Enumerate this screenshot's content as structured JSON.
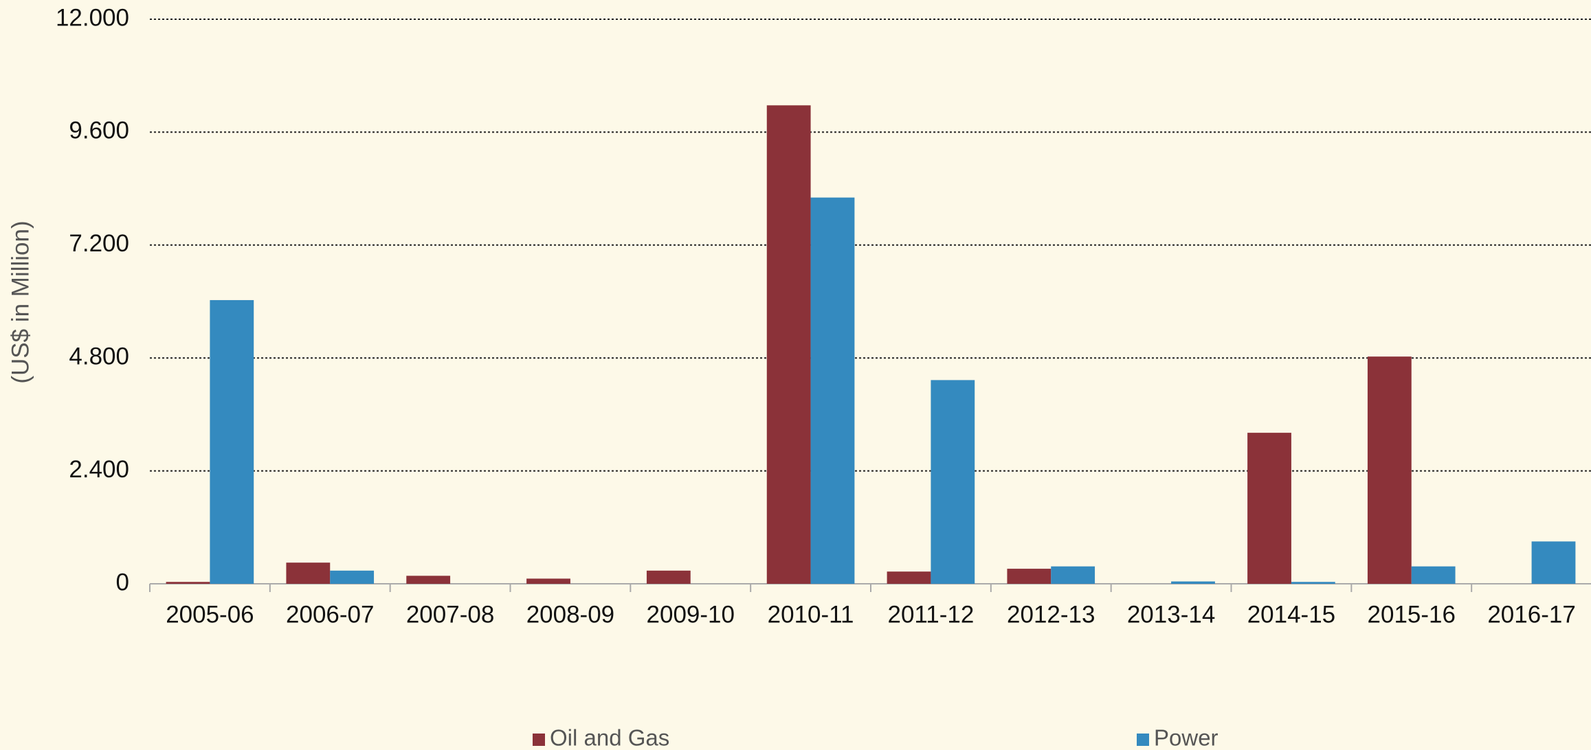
{
  "chart_data": {
    "type": "bar",
    "y_axis_label": "(US$ in Million)",
    "categories": [
      "2005-06",
      "2006-07",
      "2007-08",
      "2008-09",
      "2009-10",
      "2010-11",
      "2011-12",
      "2012-13",
      "2013-14",
      "2014-15",
      "2015-16",
      "2016-17"
    ],
    "series": [
      {
        "name": "Oil and Gas",
        "color": "#8b3239",
        "values": [
          40,
          450,
          170,
          110,
          280,
          10170,
          260,
          320,
          0,
          3210,
          4830,
          0
        ]
      },
      {
        "name": "Power",
        "color": "#348abf",
        "values": [
          6030,
          280,
          0,
          0,
          0,
          8210,
          4330,
          370,
          50,
          40,
          370,
          900
        ]
      }
    ],
    "ylim": [
      0,
      12000
    ],
    "yticks": [
      0,
      {
        "value": 2400,
        "label": "2.400"
      },
      {
        "value": 4800,
        "label": "4.800"
      },
      {
        "value": 7200,
        "label": "7.200"
      },
      {
        "value": 9600,
        "label": "9.600"
      },
      {
        "value": 12000,
        "label": "12.000"
      }
    ],
    "grid": true,
    "legend": "bottom"
  }
}
